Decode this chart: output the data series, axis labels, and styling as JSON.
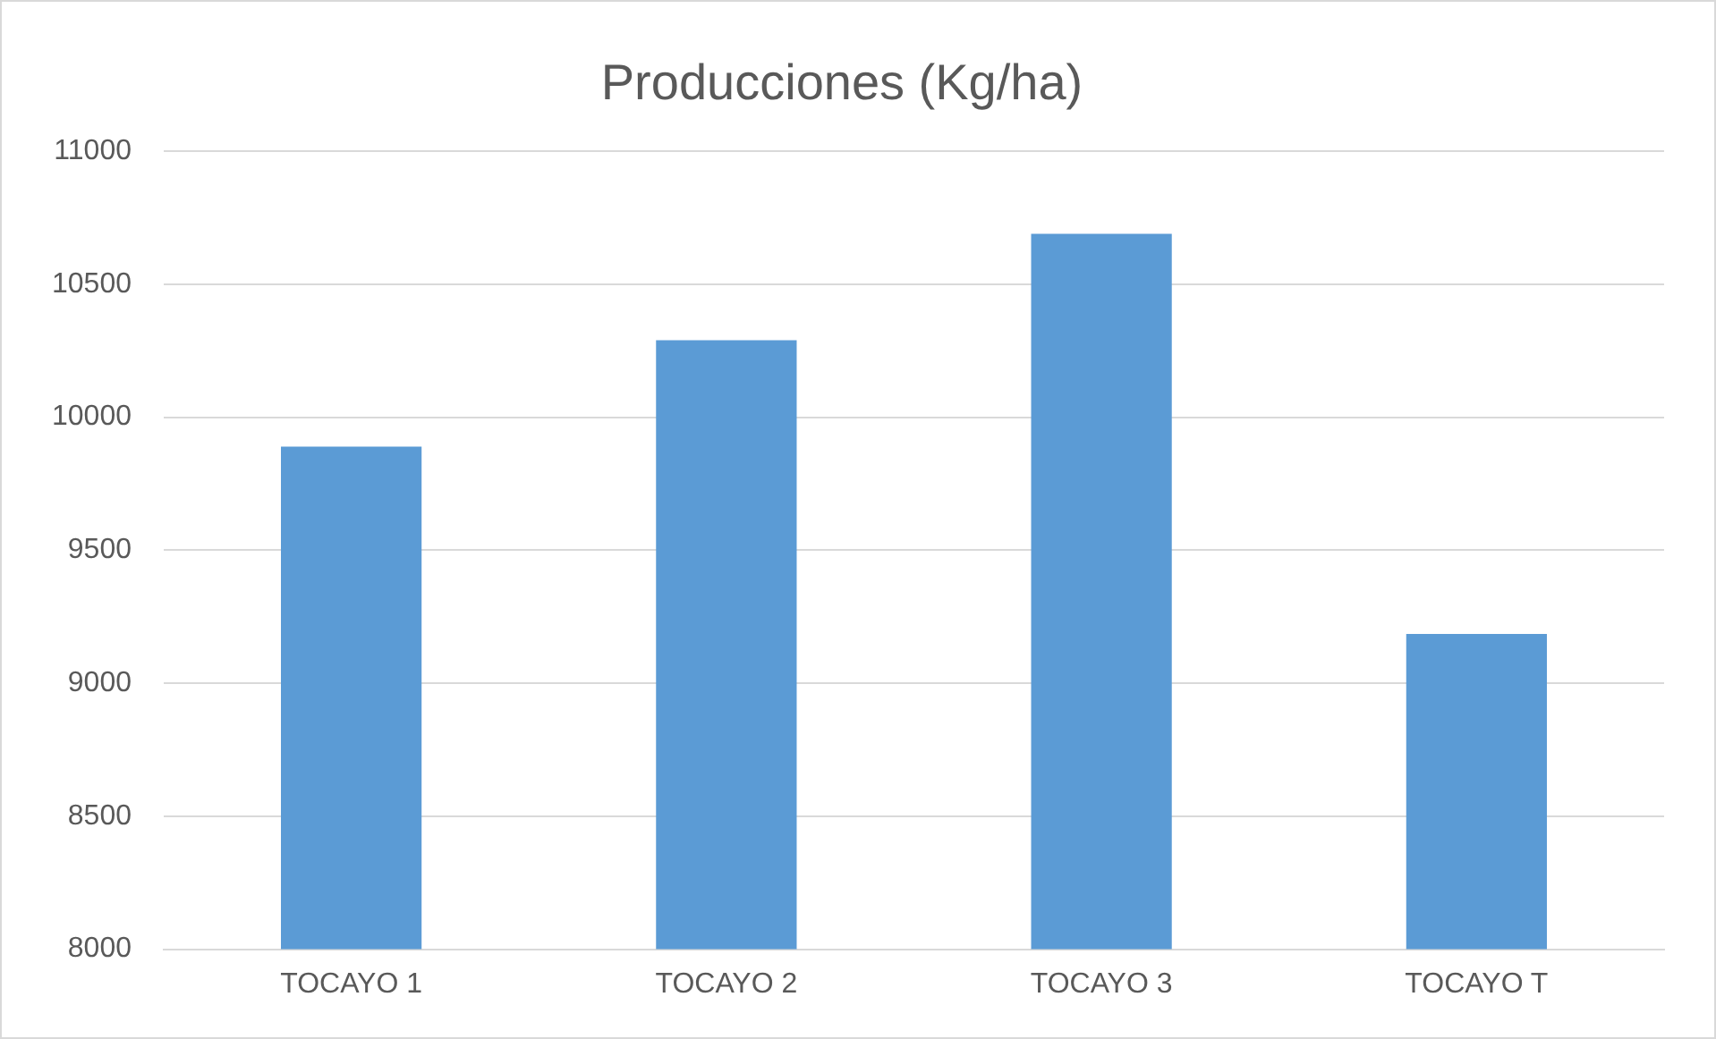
{
  "chart_data": {
    "type": "bar",
    "title": "Producciones (Kg/ha)",
    "categories": [
      "TOCAYO 1",
      "TOCAYO 2",
      "TOCAYO 3",
      "TOCAYO T"
    ],
    "values": [
      9890,
      10290,
      10690,
      9185
    ],
    "color": "#5b9bd5",
    "ylim": [
      8000,
      11000
    ],
    "yticks": [
      8000,
      8500,
      9000,
      9500,
      10000,
      10500,
      11000
    ],
    "grid": "y",
    "legend": false
  }
}
